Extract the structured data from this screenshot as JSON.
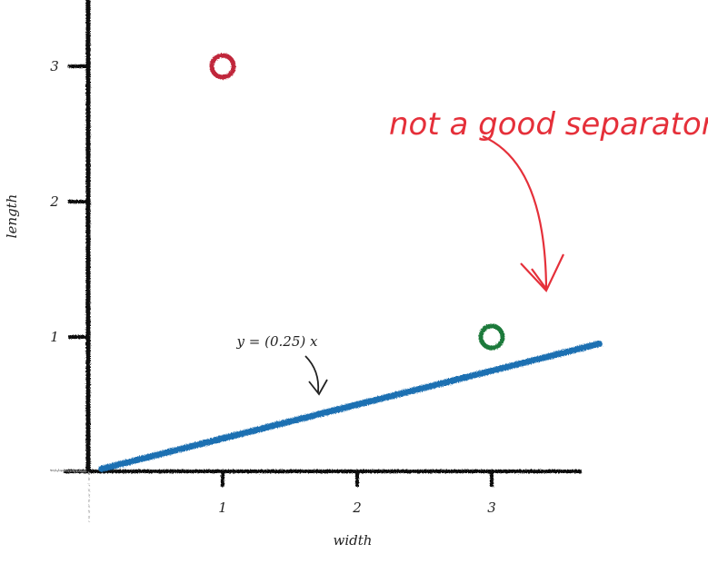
{
  "chart_data": {
    "type": "scatter",
    "xlabel": "width",
    "ylabel": "length",
    "xlim": [
      -0.5,
      3.8
    ],
    "ylim": [
      -0.02,
      3.5
    ],
    "x_ticks": [
      1,
      2,
      3
    ],
    "x_tick_labels": [
      "1",
      "2",
      "3"
    ],
    "y_ticks": [
      1,
      2,
      3
    ],
    "y_tick_labels": [
      "1",
      "2",
      "3"
    ],
    "grid": false,
    "series": [
      {
        "marker": "open-circle",
        "color": "#c0283a",
        "points": [
          {
            "x": 1,
            "y": 3
          }
        ]
      },
      {
        "marker": "open-circle",
        "color": "#1f7a3a",
        "points": [
          {
            "x": 3,
            "y": 1
          }
        ]
      }
    ],
    "line": {
      "slope": 0.25,
      "intercept": 0,
      "x_range": [
        0.1,
        3.8
      ],
      "color": "#1f6fb2",
      "label": "y = (0.25) x"
    },
    "annotation": {
      "text": "not a good separator",
      "color": "#e5303a",
      "points_to": {
        "x": 3.4,
        "y": 1.3
      }
    }
  }
}
